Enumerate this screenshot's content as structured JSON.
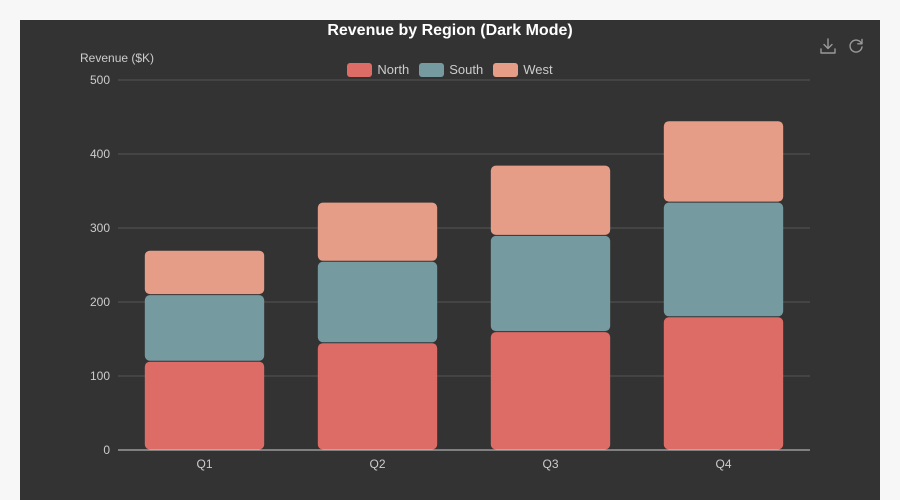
{
  "toolbox": {
    "items": [
      {
        "icon": "download-icon"
      },
      {
        "icon": "refresh-icon"
      }
    ]
  },
  "colors": {
    "page_background": "#f7f7f7",
    "panel_background": "#333333",
    "grid": "#555555",
    "axis_line": "#cccccc",
    "text": "#cccccc",
    "title": "#ffffff"
  },
  "chart_data": {
    "type": "bar",
    "stacked": true,
    "title": "Revenue by Region (Dark Mode)",
    "ylabel": "Revenue ($K)",
    "xlabel": "",
    "categories": [
      "Q1",
      "Q2",
      "Q3",
      "Q4"
    ],
    "ylim": [
      0,
      500
    ],
    "yticks": [
      0,
      100,
      200,
      300,
      400,
      500
    ],
    "grid": true,
    "legend_position": "top-center",
    "series": [
      {
        "name": "North",
        "color": "#dd6b66",
        "values": [
          120,
          145,
          160,
          180
        ]
      },
      {
        "name": "South",
        "color": "#759aa0",
        "values": [
          90,
          110,
          130,
          155
        ]
      },
      {
        "name": "West",
        "color": "#e69d87",
        "values": [
          60,
          80,
          95,
          110
        ]
      }
    ]
  }
}
